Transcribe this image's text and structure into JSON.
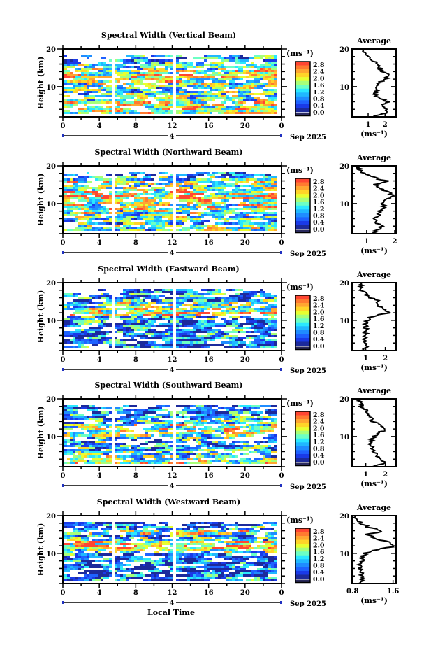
{
  "chart_data": {
    "type": "heatmap",
    "common": {
      "ylabel": "Height (km)",
      "ylim": [
        2,
        20
      ],
      "yticks": [
        "20",
        "10"
      ],
      "xlim": [
        0,
        24
      ],
      "xticks": [
        "0",
        "4",
        "8",
        "12",
        "16",
        "20",
        "0"
      ],
      "date_day": "4",
      "date_label": "Sep 2025",
      "xlabel": "Local Time",
      "colorbar_unit": "(ms⁻¹)",
      "colorbar_labels": [
        "2.8",
        "2.4",
        "2.0",
        "1.6",
        "1.2",
        "0.8",
        "0.4",
        "0.0"
      ],
      "colorbar_range": [
        0,
        2.8
      ],
      "average_title": "Average",
      "average_unit": "(ms⁻¹)",
      "palette": [
        "#2a2a5e",
        "#1c2a9c",
        "#1a3ae8",
        "#1e62ff",
        "#1f8cff",
        "#20b8ff",
        "#2ae8ff",
        "#6cffc4",
        "#a8ff78",
        "#e8ff30",
        "#ffd428",
        "#ffa630",
        "#ff7a30",
        "#ff4632"
      ]
    },
    "panels": [
      {
        "title": "Spectral Width (Vertical Beam)",
        "avg_xticks": [
          "1",
          "2"
        ],
        "avg_tickvals": [
          1,
          2
        ],
        "avg_xlim": [
          0.05,
          2.65
        ],
        "avg_profile": {
          "height": [
            2,
            3,
            4,
            5,
            6,
            7,
            8,
            9,
            10,
            11,
            12,
            13,
            14,
            15,
            16,
            17,
            18,
            19,
            20
          ],
          "value": [
            1.3,
            2.0,
            2.1,
            1.9,
            2.2,
            1.6,
            1.4,
            1.5,
            1.6,
            1.7,
            2.0,
            2.3,
            1.9,
            1.7,
            1.5,
            1.3,
            0.9,
            0.8,
            0.8
          ]
        }
      },
      {
        "title": "Spectral Width (Northward Beam)",
        "avg_xticks": [
          "1",
          "2"
        ],
        "avg_tickvals": [
          1,
          2
        ],
        "avg_xlim": [
          0.48,
          2.05
        ],
        "avg_profile": {
          "height": [
            2,
            3,
            4,
            5,
            6,
            7,
            8,
            9,
            10,
            11,
            12,
            13,
            14,
            15,
            16,
            17,
            18,
            19,
            20
          ],
          "value": [
            1.2,
            1.4,
            1.5,
            1.3,
            1.3,
            1.4,
            1.5,
            1.6,
            1.6,
            1.7,
            1.9,
            1.8,
            1.5,
            1.3,
            1.7,
            1.2,
            0.9,
            0.7,
            0.7
          ]
        }
      },
      {
        "title": "Spectral Width (Eastward Beam)",
        "avg_xticks": [
          "1",
          "2"
        ],
        "avg_tickvals": [
          1,
          2
        ],
        "avg_xlim": [
          0.3,
          2.55
        ],
        "avg_profile": {
          "height": [
            2,
            3,
            4,
            5,
            6,
            7,
            8,
            9,
            10,
            11,
            12,
            13,
            14,
            15,
            16,
            17,
            18,
            19,
            20
          ],
          "value": [
            0.9,
            1.0,
            0.9,
            0.9,
            1.0,
            1.0,
            1.0,
            1.0,
            1.1,
            1.3,
            2.2,
            2.0,
            1.5,
            1.7,
            1.2,
            1.0,
            0.8,
            0.8,
            0.8
          ]
        }
      },
      {
        "title": "Spectral Width (Southward Beam)",
        "avg_xticks": [
          "1",
          "2"
        ],
        "avg_tickvals": [
          1,
          2
        ],
        "avg_xlim": [
          0.3,
          2.55
        ],
        "avg_profile": {
          "height": [
            2,
            3,
            4,
            5,
            6,
            7,
            8,
            9,
            10,
            11,
            12,
            13,
            14,
            15,
            16,
            17,
            18,
            19,
            20
          ],
          "value": [
            1.3,
            2.0,
            1.7,
            1.6,
            1.4,
            1.3,
            1.2,
            1.3,
            1.4,
            1.7,
            2.1,
            1.8,
            1.4,
            1.2,
            1.1,
            1.0,
            0.8,
            0.7,
            0.7
          ]
        }
      },
      {
        "title": "Spectral Width (Westward Beam)",
        "avg_xticks": [
          "0.8",
          "1.6"
        ],
        "avg_tickvals": [
          0.8,
          1.6
        ],
        "avg_xlim": [
          0.79,
          1.66
        ],
        "avg_profile": {
          "height": [
            2,
            3,
            4,
            5,
            6,
            7,
            8,
            9,
            10,
            11,
            12,
            13,
            14,
            15,
            16,
            17,
            18,
            19,
            20
          ],
          "value": [
            0.9,
            1.0,
            1.0,
            0.95,
            0.95,
            0.95,
            1.0,
            1.0,
            1.05,
            1.3,
            1.65,
            1.5,
            1.2,
            1.1,
            1.4,
            1.1,
            0.95,
            0.9,
            0.85
          ]
        }
      }
    ]
  }
}
